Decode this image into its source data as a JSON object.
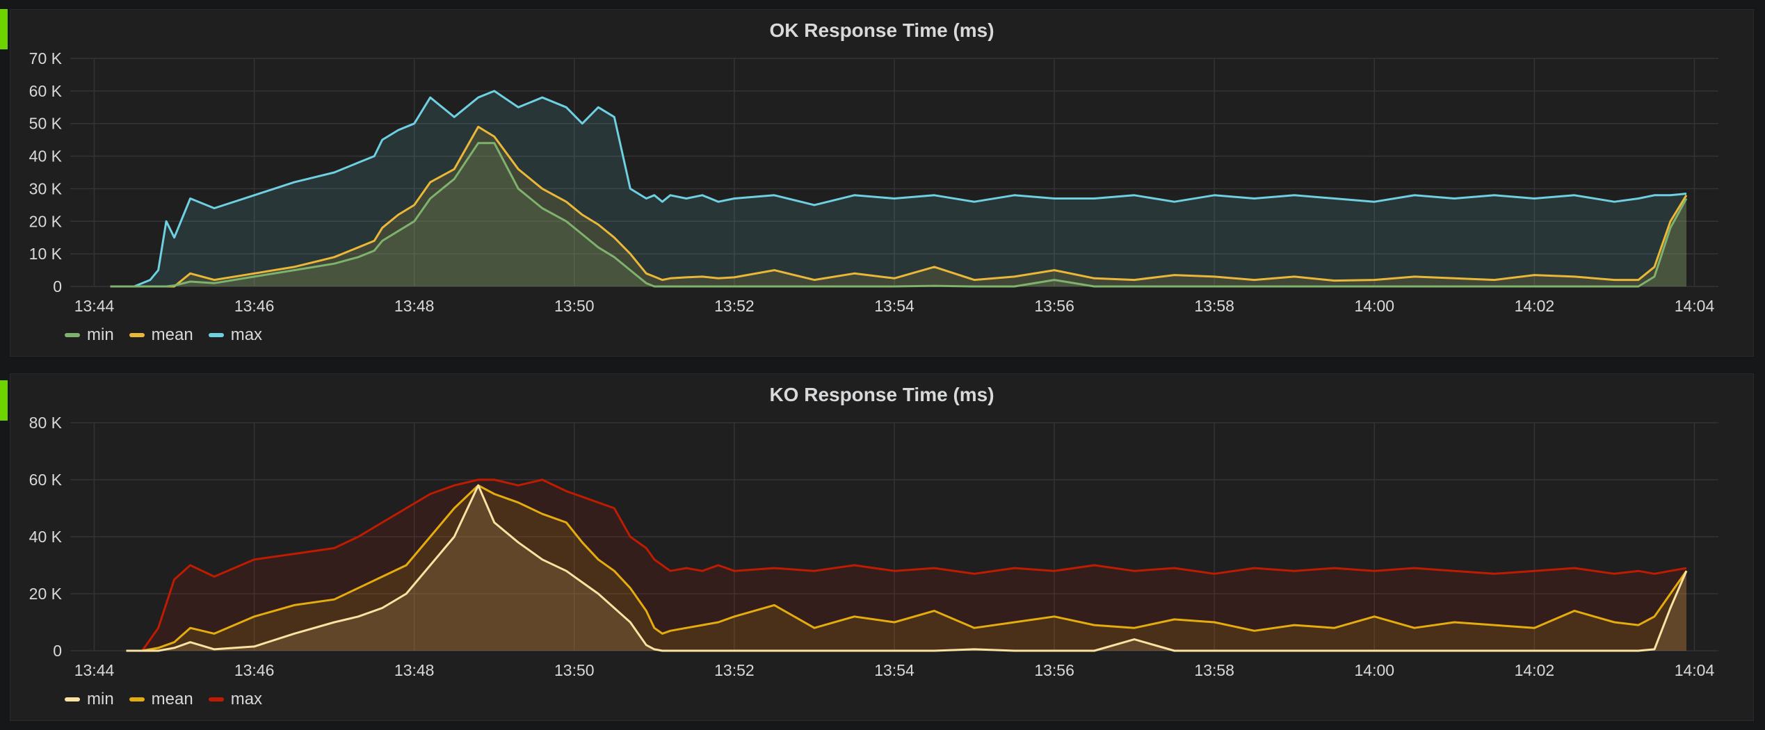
{
  "chart_data": [
    {
      "type": "line",
      "title": "OK Response Time (ms)",
      "xlabel": "",
      "ylabel": "",
      "x_ticks": [
        "13:44",
        "13:46",
        "13:48",
        "13:50",
        "13:52",
        "13:54",
        "13:56",
        "13:58",
        "14:00",
        "14:02",
        "14:04"
      ],
      "y_ticks": [
        "0",
        "10 K",
        "20 K",
        "30 K",
        "40 K",
        "50 K",
        "60 K",
        "70 K"
      ],
      "ylim": [
        0,
        70000
      ],
      "grid": true,
      "legend_position": "bottom-left",
      "x_minutes": [
        0.2,
        0.5,
        0.7,
        0.8,
        0.9,
        1.0,
        1.2,
        1.5,
        2.0,
        2.5,
        3.0,
        3.3,
        3.5,
        3.6,
        3.8,
        4.0,
        4.2,
        4.5,
        4.8,
        5.0,
        5.3,
        5.6,
        5.9,
        6.1,
        6.3,
        6.5,
        6.7,
        6.9,
        7.0,
        7.1,
        7.2,
        7.4,
        7.6,
        7.8,
        8.0,
        8.5,
        9.0,
        9.5,
        10.0,
        10.5,
        11.0,
        11.5,
        12.0,
        12.5,
        13.0,
        13.5,
        14.0,
        14.5,
        15.0,
        15.5,
        16.0,
        16.5,
        17.0,
        17.5,
        18.0,
        18.5,
        19.0,
        19.3,
        19.5,
        19.7,
        19.9
      ],
      "series": [
        {
          "name": "min",
          "color": "#7eb26d",
          "values": [
            0,
            0,
            0,
            0,
            0,
            300,
            1500,
            1000,
            3000,
            5000,
            7000,
            9000,
            11000,
            14000,
            17000,
            20000,
            27000,
            33000,
            44000,
            44000,
            30000,
            24000,
            20000,
            16000,
            12000,
            9000,
            5000,
            1000,
            0,
            0,
            0,
            0,
            0,
            0,
            0,
            0,
            0,
            0,
            0,
            200,
            0,
            0,
            2000,
            0,
            0,
            0,
            0,
            0,
            0,
            0,
            0,
            0,
            0,
            0,
            0,
            0,
            0,
            0,
            3000,
            18000,
            27000
          ]
        },
        {
          "name": "mean",
          "color": "#eab839",
          "values": [
            0,
            0,
            0,
            0,
            0,
            0,
            4000,
            2000,
            4000,
            6000,
            9000,
            12000,
            14000,
            18000,
            22000,
            25000,
            32000,
            36000,
            49000,
            46000,
            36000,
            30000,
            26000,
            22000,
            19000,
            15000,
            10000,
            4000,
            3000,
            2000,
            2500,
            2800,
            3000,
            2500,
            2800,
            5000,
            2000,
            4000,
            2500,
            6000,
            2000,
            3000,
            5000,
            2500,
            2000,
            3500,
            3000,
            2000,
            3000,
            1800,
            2000,
            3000,
            2500,
            2000,
            3500,
            3000,
            2000,
            2000,
            6000,
            20000,
            28000
          ]
        },
        {
          "name": "max",
          "color": "#6ed0e0",
          "values": [
            0,
            0,
            2000,
            5000,
            20000,
            15000,
            27000,
            24000,
            28000,
            32000,
            35000,
            38000,
            40000,
            45000,
            48000,
            50000,
            58000,
            52000,
            58000,
            60000,
            55000,
            58000,
            55000,
            50000,
            55000,
            52000,
            30000,
            27000,
            28000,
            26000,
            28000,
            27000,
            28000,
            26000,
            27000,
            28000,
            25000,
            28000,
            27000,
            28000,
            26000,
            28000,
            27000,
            27000,
            28000,
            26000,
            28000,
            27000,
            28000,
            27000,
            26000,
            28000,
            27000,
            28000,
            27000,
            28000,
            26000,
            27000,
            28000,
            28000,
            28500
          ]
        }
      ]
    },
    {
      "type": "line",
      "title": "KO Response Time (ms)",
      "xlabel": "",
      "ylabel": "",
      "x_ticks": [
        "13:44",
        "13:46",
        "13:48",
        "13:50",
        "13:52",
        "13:54",
        "13:56",
        "13:58",
        "14:00",
        "14:02",
        "14:04"
      ],
      "y_ticks": [
        "0",
        "20 K",
        "40 K",
        "60 K",
        "80 K"
      ],
      "ylim": [
        0,
        80000
      ],
      "grid": true,
      "legend_position": "bottom-left",
      "x_minutes": [
        0.4,
        0.6,
        0.8,
        1.0,
        1.2,
        1.5,
        2.0,
        2.5,
        3.0,
        3.3,
        3.6,
        3.9,
        4.2,
        4.5,
        4.8,
        5.0,
        5.3,
        5.6,
        5.9,
        6.1,
        6.3,
        6.5,
        6.7,
        6.9,
        7.0,
        7.1,
        7.2,
        7.4,
        7.6,
        7.8,
        8.0,
        8.5,
        9.0,
        9.5,
        10.0,
        10.5,
        11.0,
        11.5,
        12.0,
        12.5,
        13.0,
        13.5,
        14.0,
        14.5,
        15.0,
        15.5,
        16.0,
        16.5,
        17.0,
        17.5,
        18.0,
        18.5,
        19.0,
        19.3,
        19.5,
        19.7,
        19.9
      ],
      "series": [
        {
          "name": "min",
          "color": "#f9e2a2",
          "values": [
            0,
            0,
            0,
            1000,
            3000,
            500,
            1500,
            6000,
            10000,
            12000,
            15000,
            20000,
            30000,
            40000,
            58000,
            45000,
            38000,
            32000,
            28000,
            24000,
            20000,
            15000,
            10000,
            2000,
            500,
            0,
            0,
            0,
            0,
            0,
            0,
            0,
            0,
            0,
            0,
            0,
            500,
            0,
            0,
            0,
            4000,
            0,
            0,
            0,
            0,
            0,
            0,
            0,
            0,
            0,
            0,
            0,
            0,
            0,
            500,
            15000,
            28000
          ]
        },
        {
          "name": "mean",
          "color": "#e5ac0e",
          "values": [
            0,
            0,
            1000,
            3000,
            8000,
            6000,
            12000,
            16000,
            18000,
            22000,
            26000,
            30000,
            40000,
            50000,
            58000,
            55000,
            52000,
            48000,
            45000,
            38000,
            32000,
            28000,
            22000,
            14000,
            8000,
            6000,
            7000,
            8000,
            9000,
            10000,
            12000,
            16000,
            8000,
            12000,
            10000,
            14000,
            8000,
            10000,
            12000,
            9000,
            8000,
            11000,
            10000,
            7000,
            9000,
            8000,
            12000,
            8000,
            10000,
            9000,
            8000,
            14000,
            10000,
            9000,
            12000,
            20000,
            28000
          ]
        },
        {
          "name": "max",
          "color": "#bf1b00",
          "values": [
            0,
            0,
            8000,
            25000,
            30000,
            26000,
            32000,
            34000,
            36000,
            40000,
            45000,
            50000,
            55000,
            58000,
            60000,
            60000,
            58000,
            60000,
            56000,
            54000,
            52000,
            50000,
            40000,
            36000,
            32000,
            30000,
            28000,
            29000,
            28000,
            30000,
            28000,
            29000,
            28000,
            30000,
            28000,
            29000,
            27000,
            29000,
            28000,
            30000,
            28000,
            29000,
            27000,
            29000,
            28000,
            29000,
            28000,
            29000,
            28000,
            27000,
            28000,
            29000,
            27000,
            28000,
            27000,
            28000,
            29000
          ]
        }
      ]
    }
  ]
}
